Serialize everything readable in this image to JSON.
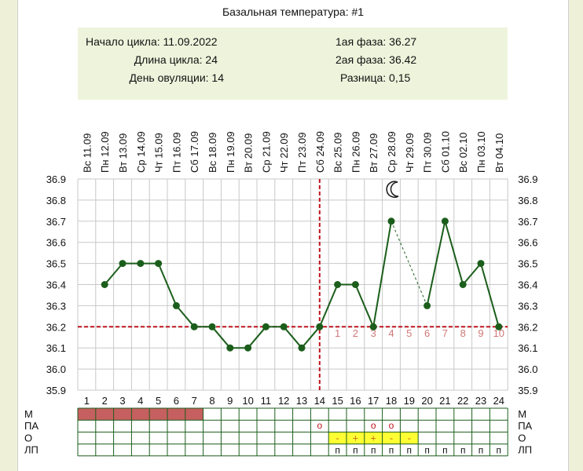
{
  "title": "Базальная температура: #1",
  "info": {
    "cycle_start": "Начало цикла: 11.09.2022",
    "cycle_length": "Длина цикла: 24",
    "ovulation_day": "День овуляции: 14",
    "phase1": "1ая фаза: 36.27",
    "phase2": "2ая фаза: 36.42",
    "difference": "Разница: 0,15"
  },
  "chart_data": {
    "type": "line",
    "title": "Базальная температура: #1",
    "dates": [
      "Вс 11.09",
      "Пн 12.09",
      "Вт 13.09",
      "Ср 14.09",
      "Чт 15.09",
      "Пт 16.09",
      "Сб 17.09",
      "Вс 18.09",
      "Пн 19.09",
      "Вт 20.09",
      "Ср 21.09",
      "Чт 22.09",
      "Пт 23.09",
      "Сб 24.09",
      "Вс 25.09",
      "Пн 26.09",
      "Вт 27.09",
      "Ср 28.09",
      "Чт 29.09",
      "Пт 30.09",
      "Сб 01.10",
      "Вс 02.10",
      "Пн 03.10",
      "Вт 04.10"
    ],
    "days": [
      "1",
      "2",
      "3",
      "4",
      "5",
      "6",
      "7",
      "8",
      "9",
      "10",
      "11",
      "12",
      "13",
      "14",
      "15",
      "16",
      "17",
      "18",
      "19",
      "20",
      "21",
      "22",
      "23",
      "24"
    ],
    "y_ticks": [
      "35.9",
      "36.0",
      "36.1",
      "36.2",
      "36.3",
      "36.4",
      "36.5",
      "36.6",
      "36.7",
      "36.8",
      "36.9"
    ],
    "ylim": [
      35.9,
      36.9
    ],
    "temperatures": [
      null,
      36.4,
      36.5,
      36.5,
      36.5,
      36.3,
      36.2,
      36.2,
      36.1,
      36.1,
      36.2,
      36.2,
      36.1,
      36.2,
      36.4,
      36.4,
      36.2,
      36.7,
      null,
      36.3,
      36.7,
      36.4,
      36.5,
      36.2
    ],
    "coverline": 36.2,
    "ovulation_day": 14,
    "post_ovulation_labels": [
      "1",
      "2",
      "3",
      "4",
      "5",
      "6",
      "7",
      "8",
      "9",
      "10"
    ],
    "moon_day": 18,
    "grid": true
  },
  "tracker": {
    "row_labels": [
      "М",
      "ПА",
      "О",
      "ЛП"
    ],
    "menstruation_days": [
      1,
      2,
      3,
      4,
      5,
      6,
      7
    ],
    "pa_marks": [
      {
        "day": 14,
        "text": "o"
      },
      {
        "day": 17,
        "text": "o"
      },
      {
        "day": 18,
        "text": "o"
      }
    ],
    "o_marks": [
      {
        "day": 15,
        "text": "-"
      },
      {
        "day": 16,
        "text": "+"
      },
      {
        "day": 17,
        "text": "+"
      },
      {
        "day": 18,
        "text": "-"
      },
      {
        "day": 19,
        "text": "-"
      }
    ],
    "lp_mark": "п",
    "lp_days": [
      15,
      16,
      17,
      18,
      19,
      20,
      21,
      22,
      23,
      24
    ]
  },
  "colors": {
    "line": "#1b5e1b",
    "marker": "#1b5e1b",
    "coverline": "#c0141e",
    "post_label": "#d07878",
    "menstruation": "#c65f5f",
    "o_highlight": "#ffff33",
    "grid": "#c8c8c8",
    "tracker_grid": "#1b5e1b"
  }
}
